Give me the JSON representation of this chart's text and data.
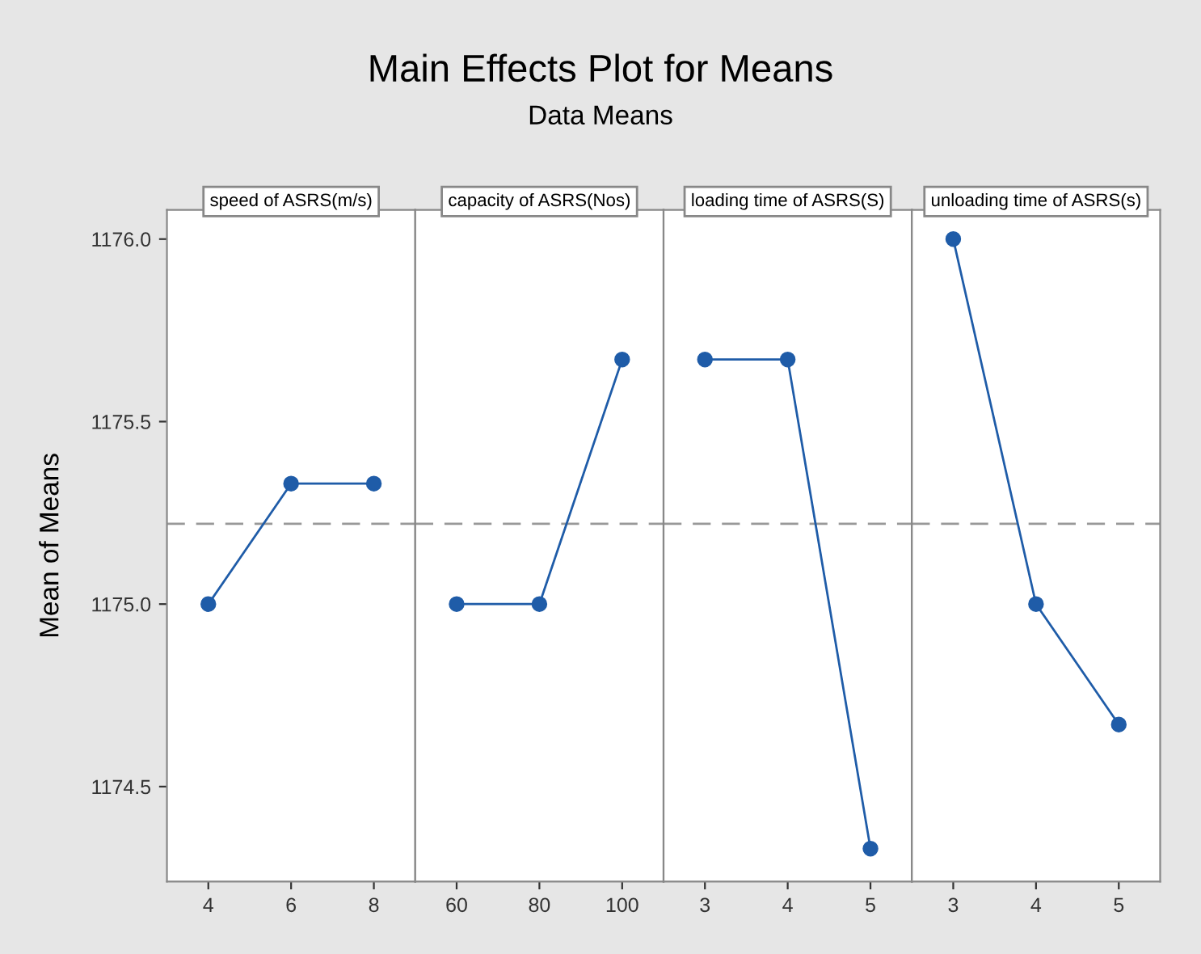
{
  "chart_data": [
    {
      "type": "line",
      "title": "speed of ASRS(m/s)",
      "ylabel": "Mean of Means",
      "annotations": [
        "Main Effects Plot for Means",
        "Data Means"
      ],
      "categories": [
        "4",
        "6",
        "8"
      ],
      "series": [
        {
          "color": "#1f5ca8",
          "values": [
            1175.0,
            1175.33,
            1175.33
          ]
        }
      ],
      "ylim": [
        1174.24,
        1176.08
      ],
      "yticks": [
        {
          "value": 1174.5,
          "label": "1174.5"
        },
        {
          "value": 1175.0,
          "label": "1175.0"
        },
        {
          "value": 1175.5,
          "label": "1175.5"
        },
        {
          "value": 1176.0,
          "label": "1176.0"
        }
      ],
      "ref_lines": [
        {
          "axis": "y",
          "value": 1175.22,
          "color": "#999999",
          "line_style": "dashed"
        }
      ],
      "marker": "circle",
      "line_style": "solid",
      "grid": false
    },
    {
      "type": "line",
      "title": "capacity of ASRS(Nos)",
      "categories": [
        "60",
        "80",
        "100"
      ],
      "series": [
        {
          "color": "#1f5ca8",
          "values": [
            1175.0,
            1175.0,
            1175.67
          ]
        }
      ],
      "ylim": [
        1174.24,
        1176.08
      ],
      "ref_lines": [
        {
          "axis": "y",
          "value": 1175.22,
          "color": "#999999",
          "line_style": "dashed"
        }
      ],
      "marker": "circle",
      "line_style": "solid",
      "grid": false,
      "tick_labels": "x"
    },
    {
      "type": "line",
      "title": "loading time of ASRS(S)",
      "categories": [
        "3",
        "4",
        "5"
      ],
      "series": [
        {
          "color": "#1f5ca8",
          "values": [
            1175.67,
            1175.67,
            1174.33
          ]
        }
      ],
      "ylim": [
        1174.24,
        1176.08
      ],
      "ref_lines": [
        {
          "axis": "y",
          "value": 1175.22,
          "color": "#999999",
          "line_style": "dashed"
        }
      ],
      "marker": "circle",
      "line_style": "solid",
      "grid": false,
      "tick_labels": "x"
    },
    {
      "type": "line",
      "title": "unloading time of ASRS(s)",
      "categories": [
        "3",
        "4",
        "5"
      ],
      "series": [
        {
          "color": "#1f5ca8",
          "values": [
            1176.0,
            1175.0,
            1174.67
          ]
        }
      ],
      "ylim": [
        1174.24,
        1176.08
      ],
      "ref_lines": [
        {
          "axis": "y",
          "value": 1175.22,
          "color": "#999999",
          "line_style": "dashed"
        }
      ],
      "marker": "circle",
      "line_style": "solid",
      "grid": false,
      "tick_labels": "x"
    }
  ]
}
